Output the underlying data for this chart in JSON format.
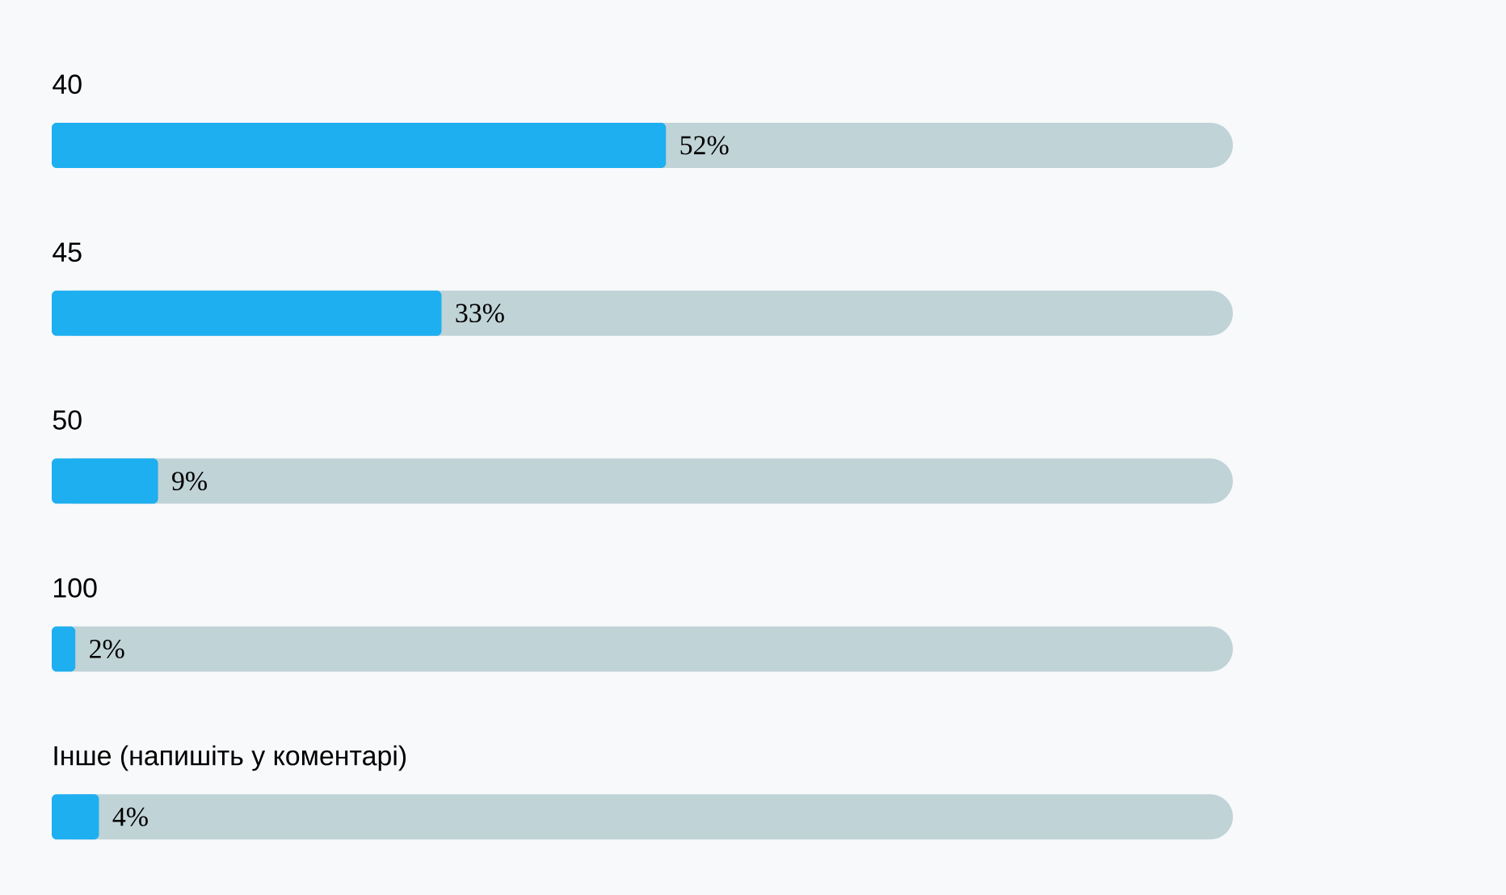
{
  "chart_data": {
    "type": "bar",
    "orientation": "horizontal",
    "categories": [
      "40",
      "45",
      "50",
      "100",
      "Інше (напишіть у коментарі)"
    ],
    "values": [
      52,
      33,
      9,
      2,
      4
    ],
    "value_labels": [
      "52%",
      "33%",
      "9%",
      "2%",
      "4%"
    ],
    "color": "#1eaff0"
  }
}
